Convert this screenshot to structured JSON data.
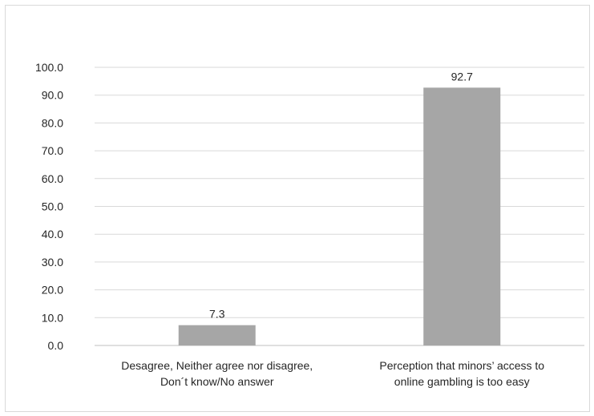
{
  "chart_data": {
    "type": "bar",
    "title": "",
    "xlabel": "",
    "ylabel": "",
    "categories": [
      [
        "Desagree, Neither agree nor disagree,",
        "Don´t know/No answer"
      ],
      [
        "Perception that minors’ access to",
        "online gambling is too easy"
      ]
    ],
    "values": [
      7.3,
      92.7
    ],
    "value_labels": [
      "7.3",
      "92.7"
    ],
    "ylim": [
      0,
      100
    ],
    "yticks": [
      "0.0",
      "10.0",
      "20.0",
      "30.0",
      "40.0",
      "50.0",
      "60.0",
      "70.0",
      "80.0",
      "90.0",
      "100.0"
    ],
    "grid": true,
    "bar_color": "#a6a6a6",
    "legend": "none"
  }
}
